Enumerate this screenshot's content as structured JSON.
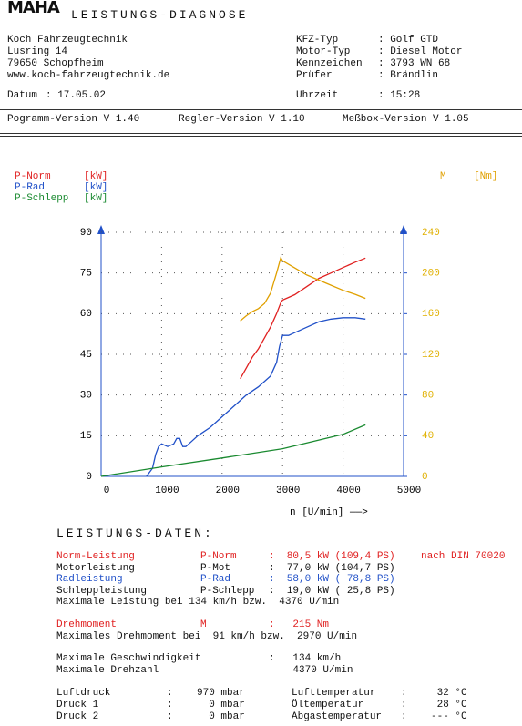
{
  "header": {
    "logo": "MAHA",
    "title": "LEISTUNGS-DIAGNOSE"
  },
  "address": [
    "Koch Fahrzeugtechnik",
    "Lusring 14",
    "79650 Schopfheim",
    "www.koch-fahrzeugtechnik.de"
  ],
  "vehicle": [
    {
      "label": "KFZ-Typ",
      "value": ": Golf GTD"
    },
    {
      "label": "Motor-Typ",
      "value": ": Diesel Motor"
    },
    {
      "label": "Kennzeichen",
      "value": ": 3793 WN 68"
    },
    {
      "label": "Prüfer",
      "value": ": Brändlin"
    }
  ],
  "date": {
    "label": "Datum",
    "value": ": 17.05.02"
  },
  "time": {
    "label": "Uhrzeit",
    "value": ": 15:28"
  },
  "versions": [
    "Pogramm-Version V 1.40",
    "Regler-Version V 1.10",
    "Meßbox-Version V 1.05"
  ],
  "chart_data": {
    "type": "line",
    "xlabel": "n [U/min] ——>",
    "xlim": [
      0,
      5000
    ],
    "xticks": [
      0,
      1000,
      2000,
      3000,
      4000,
      5000
    ],
    "ylim": [
      0,
      90
    ],
    "yticks": [
      0,
      15,
      30,
      45,
      60,
      75,
      90
    ],
    "y2lim": [
      0,
      240
    ],
    "y2ticks": [
      0,
      40,
      80,
      120,
      160,
      200,
      240
    ],
    "y2color": "#e0b000",
    "grid": true,
    "series": [
      {
        "name": "P-Norm",
        "unit": "[kW]",
        "color": "#e02020",
        "x": [
          2300,
          2400,
          2500,
          2600,
          2700,
          2800,
          2900,
          2970,
          3000,
          3200,
          3400,
          3600,
          3800,
          4000,
          4200,
          4370
        ],
        "values": [
          36,
          40,
          44,
          47,
          51,
          55,
          60,
          64,
          65,
          67,
          70,
          73,
          75,
          77,
          79,
          80.5
        ]
      },
      {
        "name": "P-Rad",
        "unit": "[kW]",
        "color": "#2050c8",
        "x": [
          750,
          850,
          900,
          950,
          1000,
          1100,
          1200,
          1250,
          1300,
          1350,
          1400,
          1500,
          1600,
          1800,
          2000,
          2200,
          2400,
          2600,
          2800,
          2900,
          2950,
          3000,
          3100,
          3200,
          3400,
          3600,
          3800,
          4000,
          4200,
          4370
        ],
        "values": [
          0,
          3,
          8,
          11,
          12,
          11,
          12,
          14,
          14,
          11,
          11,
          13,
          15,
          18,
          22,
          26,
          30,
          33,
          37,
          42,
          48,
          52,
          52,
          53,
          55,
          57,
          58,
          58.5,
          58.5,
          58
        ]
      },
      {
        "name": "P-Schlepp",
        "unit": "[kW]",
        "color": "#1a8a30",
        "x": [
          0,
          1000,
          2000,
          3000,
          4000,
          4370
        ],
        "values": [
          0,
          3.5,
          6.8,
          10.2,
          15.5,
          19
        ]
      },
      {
        "name": "M",
        "unit": "[Nm]",
        "color": "#e0a000",
        "axis": "y2",
        "x": [
          2300,
          2400,
          2500,
          2600,
          2700,
          2800,
          2900,
          2970,
          3000,
          3200,
          3400,
          3600,
          3800,
          4000,
          4200,
          4370
        ],
        "values": [
          153,
          158,
          162,
          165,
          170,
          180,
          200,
          215,
          212,
          205,
          198,
          193,
          188,
          183,
          179,
          175
        ]
      }
    ]
  },
  "results": {
    "title": "LEISTUNGS-DATEN:",
    "rows": [
      {
        "label": "Norm-Leistung",
        "symbol": "P-Norm",
        "value": ":  80,5 kW (109,4 PS)",
        "note": "nach DIN 70020",
        "color": "#e02020"
      },
      {
        "label": "Motorleistung",
        "symbol": "P-Mot",
        "value": ":  77,0 kW (104,7 PS)"
      },
      {
        "label": "Radleistung",
        "symbol": "P-Rad",
        "value": ":  58,0 kW ( 78,8 PS)",
        "color": "#2050c8"
      },
      {
        "label": "Schleppleistung",
        "symbol": "P-Schlepp",
        "value": ":  19,0 kW ( 25,8 PS)"
      },
      {
        "label": "Maximale Leistung bei 134 km/h bzw.  4370 U/min"
      },
      {
        "label": "Drehmoment",
        "symbol": "M",
        "value": ":   215 Nm",
        "color": "#e02020"
      },
      {
        "label": "Maximales Drehmoment bei  91 km/h bzw.  2970 U/min"
      },
      {
        "label": "Maximale Geschwindigkeit",
        "value": ":   134 km/h"
      },
      {
        "label": "Maximale Drehzahl",
        "value": "    4370 U/min"
      }
    ]
  },
  "conditions": [
    {
      "label": "Luftdruck",
      "value": ":    970 mbar",
      "label2": "Lufttemperatur",
      "value2": ":     32 °C"
    },
    {
      "label": "Druck 1",
      "value": ":      0 mbar",
      "label2": "Öltemperatur",
      "value2": ":     28 °C"
    },
    {
      "label": "Druck 2",
      "value": ":      0 mbar",
      "label2": "Abgastemperatur",
      "value2": ":    --- °C"
    }
  ]
}
